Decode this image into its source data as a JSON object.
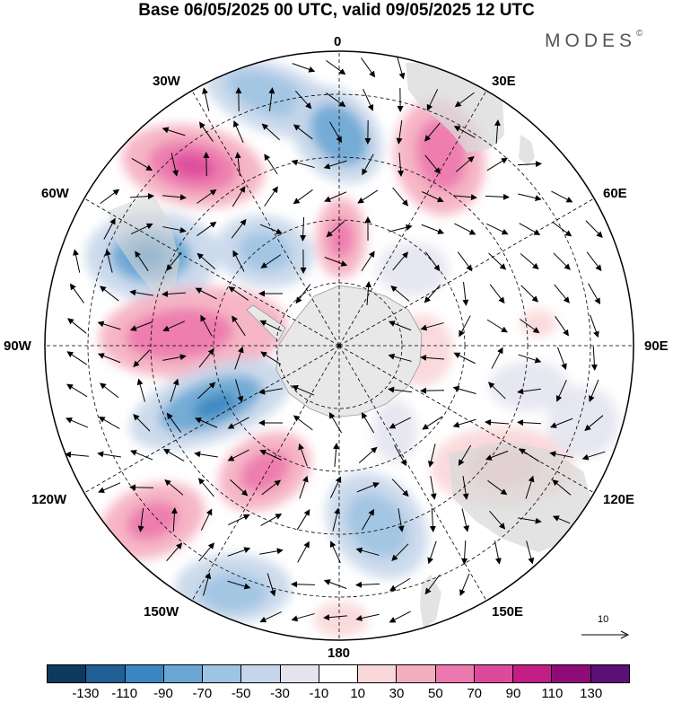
{
  "title": "Base 06/05/2025 00 UTC, valid 09/05/2025 12 UTC",
  "brand": "MODES",
  "brand_mark": "©",
  "longitude_labels": {
    "lon_0": "0",
    "lon_30e": "30E",
    "lon_60e": "60E",
    "lon_90e": "90E",
    "lon_120e": "120E",
    "lon_150e": "150E",
    "lon_180": "180",
    "lon_150w": "150W",
    "lon_120w": "120W",
    "lon_90w": "90W",
    "lon_60w": "60W",
    "lon_30w": "30W"
  },
  "colorbar": {
    "colors": [
      "#0c3a5e",
      "#1f5f94",
      "#3a86c0",
      "#6aa7d4",
      "#9fc4e2",
      "#c6d6ea",
      "#e4e4f0",
      "#ffffff",
      "#f9d6d8",
      "#f5aec0",
      "#ec79ad",
      "#dd4a9c",
      "#c31d86",
      "#8e0b78",
      "#5a1075"
    ],
    "tick_labels": [
      "-130",
      "-110",
      "-90",
      "-70",
      "-50",
      "-30",
      "-10",
      "10",
      "30",
      "50",
      "70",
      "90",
      "110",
      "130"
    ]
  },
  "reference_vector": {
    "label": "10"
  },
  "map_style": {
    "land_color": "#d9d9d9",
    "antarctica_color": "#e8e8e8",
    "grid_line_color": "#000000"
  }
}
